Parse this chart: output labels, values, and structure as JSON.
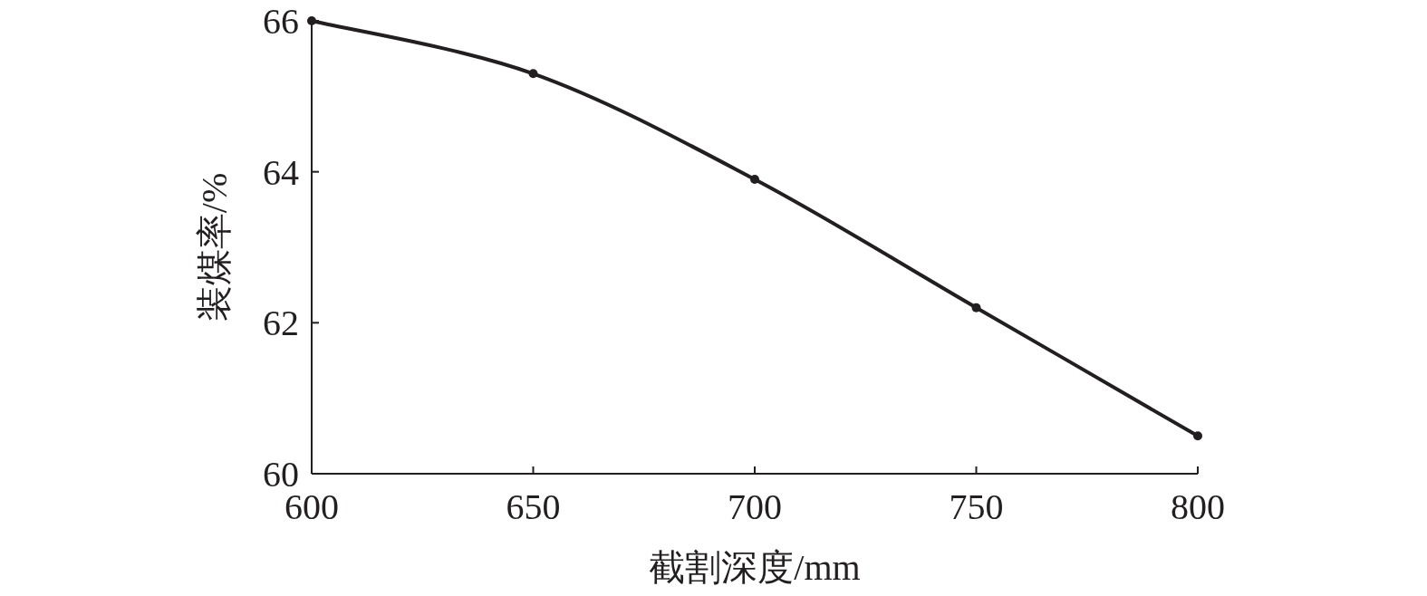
{
  "chart_data": {
    "type": "line",
    "xlabel": "截割深度/mm",
    "ylabel": "装煤率/%",
    "x": [
      600,
      650,
      700,
      750,
      800
    ],
    "series": [
      {
        "color": "#231f20",
        "values": [
          66.0,
          65.3,
          63.9,
          62.2,
          60.5
        ]
      }
    ],
    "xlim": [
      600,
      800
    ],
    "ylim": [
      60,
      66
    ],
    "xticks": [
      600,
      650,
      700,
      750,
      800
    ],
    "yticks": [
      60,
      62,
      64,
      66
    ],
    "marker": "circle",
    "grid": false
  }
}
